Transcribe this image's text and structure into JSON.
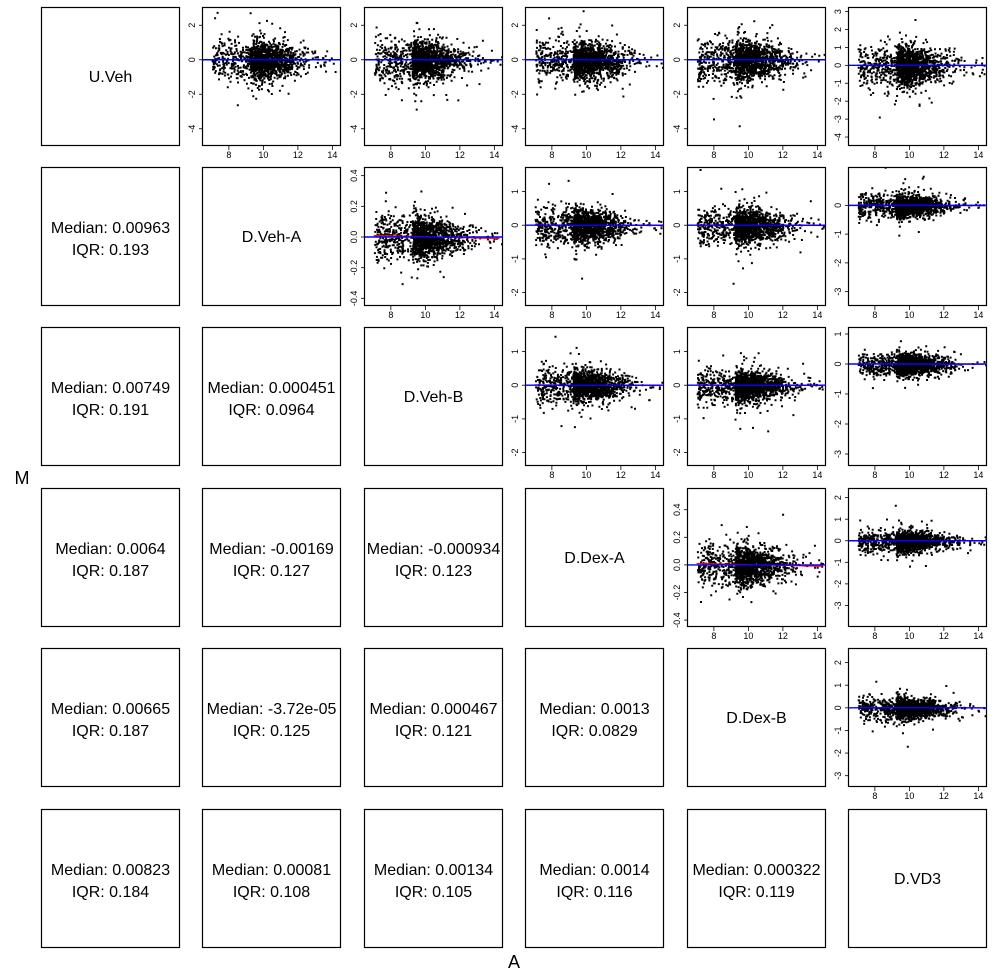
{
  "chart_data": {
    "type": "scatter",
    "title": "",
    "xlabel": "A",
    "ylabel": "M",
    "samples": [
      "U.Veh",
      "D.Veh-A",
      "D.Veh-B",
      "D.Dex-A",
      "D.Dex-B",
      "D.VD3"
    ],
    "median_label": "Median:",
    "iqr_label": "IQR:",
    "pairs": [
      {
        "row": "D.Veh-A",
        "col": "U.Veh",
        "median": "0.00963",
        "iqr": "0.193"
      },
      {
        "row": "D.Veh-B",
        "col": "U.Veh",
        "median": "0.00749",
        "iqr": "0.191"
      },
      {
        "row": "D.Veh-B",
        "col": "D.Veh-A",
        "median": "0.000451",
        "iqr": "0.0964"
      },
      {
        "row": "D.Dex-A",
        "col": "U.Veh",
        "median": "0.0064",
        "iqr": "0.187"
      },
      {
        "row": "D.Dex-A",
        "col": "D.Veh-A",
        "median": "-0.00169",
        "iqr": "0.127"
      },
      {
        "row": "D.Dex-A",
        "col": "D.Veh-B",
        "median": "-0.000934",
        "iqr": "0.123"
      },
      {
        "row": "D.Dex-B",
        "col": "U.Veh",
        "median": "0.00665",
        "iqr": "0.187"
      },
      {
        "row": "D.Dex-B",
        "col": "D.Veh-A",
        "median": "-3.72e-05",
        "iqr": "0.125"
      },
      {
        "row": "D.Dex-B",
        "col": "D.Veh-B",
        "median": "0.000467",
        "iqr": "0.121"
      },
      {
        "row": "D.Dex-B",
        "col": "D.Dex-A",
        "median": "0.0013",
        "iqr": "0.0829"
      },
      {
        "row": "D.VD3",
        "col": "U.Veh",
        "median": "0.00823",
        "iqr": "0.184"
      },
      {
        "row": "D.VD3",
        "col": "D.Veh-A",
        "median": "0.00081",
        "iqr": "0.108"
      },
      {
        "row": "D.VD3",
        "col": "D.Veh-B",
        "median": "0.00134",
        "iqr": "0.105"
      },
      {
        "row": "D.VD3",
        "col": "D.Dex-A",
        "median": "0.0014",
        "iqr": "0.116"
      },
      {
        "row": "D.VD3",
        "col": "D.Dex-B",
        "median": "0.000322",
        "iqr": "0.119"
      }
    ],
    "ma_panels": [
      {
        "row": 0,
        "col": 1,
        "xlim": [
          6.5,
          14.5
        ],
        "ylim": [
          -5,
          3
        ],
        "xticks": [
          8,
          10,
          12,
          14
        ],
        "yticks": [
          -4,
          -2,
          0,
          2
        ],
        "spread": 1.0
      },
      {
        "row": 0,
        "col": 2,
        "xlim": [
          6.5,
          14.5
        ],
        "ylim": [
          -5,
          3
        ],
        "xticks": [
          8,
          10,
          12,
          14
        ],
        "yticks": [
          -4,
          -2,
          0,
          2
        ],
        "spread": 1.0
      },
      {
        "row": 0,
        "col": 3,
        "xlim": [
          6.5,
          14.5
        ],
        "ylim": [
          -5,
          3
        ],
        "xticks": [
          8,
          10,
          12,
          14
        ],
        "yticks": [
          -4,
          -2,
          0,
          2
        ],
        "spread": 1.0
      },
      {
        "row": 0,
        "col": 4,
        "xlim": [
          6.5,
          14.5
        ],
        "ylim": [
          -5,
          3
        ],
        "xticks": [
          8,
          10,
          12,
          14
        ],
        "yticks": [
          -4,
          -2,
          0,
          2
        ],
        "spread": 1.0
      },
      {
        "row": 0,
        "col": 5,
        "xlim": [
          6.5,
          14.5
        ],
        "ylim": [
          -4.5,
          3.2
        ],
        "xticks": [
          8,
          10,
          12,
          14
        ],
        "yticks": [
          -4,
          -3,
          -2,
          -1,
          0,
          1,
          2,
          3
        ],
        "spread": 1.0
      },
      {
        "row": 1,
        "col": 2,
        "xlim": [
          6.5,
          14.5
        ],
        "ylim": [
          -0.45,
          0.45
        ],
        "xticks": [
          8,
          10,
          12,
          14
        ],
        "yticks": [
          -0.4,
          -0.2,
          0.0,
          0.2,
          0.4
        ],
        "spread": 0.12
      },
      {
        "row": 1,
        "col": 3,
        "xlim": [
          6.5,
          14.5
        ],
        "ylim": [
          -2.4,
          1.7
        ],
        "xticks": [
          8,
          10,
          12,
          14
        ],
        "yticks": [
          -2,
          -1,
          0,
          1
        ],
        "spread": 0.45
      },
      {
        "row": 1,
        "col": 4,
        "xlim": [
          6.5,
          14.5
        ],
        "ylim": [
          -2.4,
          1.7
        ],
        "xticks": [
          8,
          10,
          12,
          14
        ],
        "yticks": [
          -2,
          -1,
          0,
          1
        ],
        "spread": 0.45
      },
      {
        "row": 1,
        "col": 5,
        "xlim": [
          6.5,
          14.5
        ],
        "ylim": [
          -3.5,
          1.3
        ],
        "xticks": [
          8,
          10,
          12,
          14
        ],
        "yticks": [
          -3,
          -2,
          -1,
          0
        ],
        "spread": 0.35
      },
      {
        "row": 2,
        "col": 3,
        "xlim": [
          6.5,
          14.5
        ],
        "ylim": [
          -2.4,
          1.7
        ],
        "xticks": [
          8,
          10,
          12,
          14
        ],
        "yticks": [
          -2,
          -1,
          0,
          1
        ],
        "spread": 0.42
      },
      {
        "row": 2,
        "col": 4,
        "xlim": [
          6.5,
          14.5
        ],
        "ylim": [
          -2.4,
          1.7
        ],
        "xticks": [
          8,
          10,
          12,
          14
        ],
        "yticks": [
          -2,
          -1,
          0,
          1
        ],
        "spread": 0.42
      },
      {
        "row": 2,
        "col": 5,
        "xlim": [
          6.5,
          14.5
        ],
        "ylim": [
          -3.4,
          1.2
        ],
        "xticks": [
          8,
          10,
          12,
          14
        ],
        "yticks": [
          -3,
          -2,
          -1,
          0,
          1
        ],
        "spread": 0.32
      },
      {
        "row": 3,
        "col": 4,
        "xlim": [
          6.5,
          14.5
        ],
        "ylim": [
          -0.45,
          0.55
        ],
        "xticks": [
          8,
          10,
          12,
          14
        ],
        "yticks": [
          -0.4,
          -0.2,
          0.0,
          0.2,
          0.4
        ],
        "spread": 0.12
      },
      {
        "row": 3,
        "col": 5,
        "xlim": [
          6.5,
          14.5
        ],
        "ylim": [
          -4,
          2.4
        ],
        "xticks": [
          8,
          10,
          12,
          14
        ],
        "yticks": [
          -3,
          -2,
          -1,
          0,
          1,
          2
        ],
        "spread": 0.45
      },
      {
        "row": 4,
        "col": 5,
        "xlim": [
          6.5,
          14.5
        ],
        "ylim": [
          -3.5,
          2.6
        ],
        "xticks": [
          8,
          10,
          12,
          14
        ],
        "yticks": [
          -3,
          -2,
          -1,
          0,
          1,
          2
        ],
        "spread": 0.42
      }
    ],
    "grid": false,
    "legend": "none",
    "zero_line_color": "#0000ff",
    "loess_line_color": "#ff0000",
    "point_color": "#000000"
  }
}
